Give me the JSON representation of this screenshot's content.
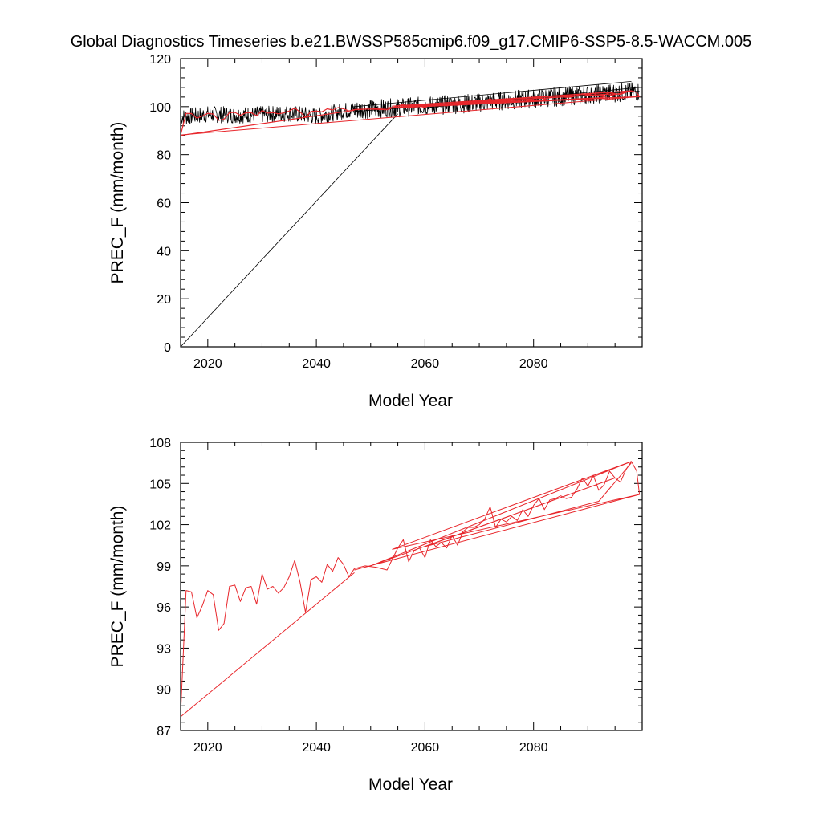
{
  "title": "Global Diagnostics Timeseries b.e21.BWSSP585cmip6.f09_g17.CMIP6-SSP5-8.5-WACCM.005",
  "colors": {
    "monthly": "#000000",
    "annual": "#e8262b",
    "frame": "#000000"
  },
  "chart_data": [
    {
      "type": "line",
      "panel": "top",
      "xlabel": "Model Year",
      "ylabel": "PREC_F (mm/month)",
      "xlim": [
        2015,
        2100
      ],
      "ylim": [
        0,
        120
      ],
      "x_ticks": [
        2020,
        2040,
        2060,
        2080
      ],
      "x_tick_labels": [
        "2020",
        "2040",
        "2060",
        "2080"
      ],
      "y_ticks": [
        0,
        20,
        40,
        60,
        80,
        100,
        120
      ],
      "y_tick_labels": [
        "0",
        "20",
        "40",
        "60",
        "80",
        "100",
        "120"
      ],
      "grid": false,
      "series": [
        {
          "style": "monthly, thin black",
          "color": "#000000",
          "segments_note": "monthly mean noisy series ~94-100 (2015-2047), ~97-110 (2047-2100), with a spurious straight segment from (2015,0) to (2055,97) and trailing wrap lines",
          "points": [
            [
              2015.0,
              0.0
            ],
            [
              2055.0,
              97.0
            ],
            [
              2015.0,
              95.5
            ],
            [
              2020.0,
              96.8
            ],
            [
              2025.0,
              96.5
            ],
            [
              2030.0,
              96.7
            ],
            [
              2035.0,
              97.2
            ],
            [
              2040.0,
              96.0
            ],
            [
              2045.0,
              98.3
            ],
            [
              2050.0,
              99.0
            ],
            [
              2055.0,
              99.5
            ],
            [
              2060.0,
              100.3
            ],
            [
              2065.0,
              100.9
            ],
            [
              2070.0,
              101.7
            ],
            [
              2075.0,
              102.6
            ],
            [
              2080.0,
              103.4
            ],
            [
              2085.0,
              104.2
            ],
            [
              2090.0,
              105.0
            ],
            [
              2095.0,
              105.8
            ],
            [
              2099.5,
              106.3
            ]
          ]
        },
        {
          "style": "annual mean, red",
          "color": "#e8262b",
          "points": [
            [
              2015.0,
              88.2
            ],
            [
              2099.5,
              104.2
            ]
          ]
        }
      ]
    },
    {
      "type": "line",
      "panel": "bottom",
      "xlabel": "Model Year",
      "ylabel": "PREC_F (mm/month)",
      "xlim": [
        2015,
        2100
      ],
      "ylim": [
        87,
        108
      ],
      "x_ticks": [
        2020,
        2040,
        2060,
        2080
      ],
      "x_tick_labels": [
        "2020",
        "2040",
        "2060",
        "2080"
      ],
      "y_ticks": [
        87,
        90,
        93,
        96,
        99,
        102,
        105,
        108
      ],
      "y_tick_labels": [
        "87",
        "90",
        "93",
        "96",
        "99",
        "102",
        "105",
        "108"
      ],
      "grid": false,
      "series": [
        {
          "style": "annual mean, red",
          "color": "#e8262b",
          "points": [
            [
              2015,
              88.2
            ],
            [
              2016,
              97.2
            ],
            [
              2017,
              97.1
            ],
            [
              2018,
              95.2
            ],
            [
              2019,
              96.1
            ],
            [
              2020,
              97.2
            ],
            [
              2021,
              96.9
            ],
            [
              2022,
              94.3
            ],
            [
              2023,
              94.8
            ],
            [
              2024,
              97.5
            ],
            [
              2025,
              97.6
            ],
            [
              2026,
              96.4
            ],
            [
              2027,
              97.4
            ],
            [
              2028,
              97.5
            ],
            [
              2029,
              96.2
            ],
            [
              2030,
              98.4
            ],
            [
              2031,
              97.3
            ],
            [
              2032,
              97.5
            ],
            [
              2033,
              97.0
            ],
            [
              2034,
              97.4
            ],
            [
              2035,
              98.2
            ],
            [
              2036,
              99.4
            ],
            [
              2037,
              97.8
            ],
            [
              2038,
              95.6
            ],
            [
              2039,
              98.0
            ],
            [
              2040,
              98.2
            ],
            [
              2041,
              97.8
            ],
            [
              2042,
              99.1
            ],
            [
              2043,
              98.6
            ],
            [
              2044,
              99.6
            ],
            [
              2045,
              99.1
            ],
            [
              2046,
              98.2
            ],
            [
              2047,
              98.8
            ]
          ]
        },
        {
          "style": "wrap segment, red",
          "color": "#e8262b",
          "points": [
            [
              2015,
              88.0
            ],
            [
              2047,
              98.5
            ]
          ]
        },
        {
          "style": "annual mean (later decades), red",
          "color": "#e8262b",
          "points": [
            [
              2047,
              98.8
            ],
            [
              2049,
              99.0
            ],
            [
              2051,
              98.9
            ],
            [
              2053,
              98.7
            ],
            [
              2055,
              100.3
            ],
            [
              2056,
              100.9
            ],
            [
              2057,
              99.3
            ],
            [
              2058,
              100.1
            ],
            [
              2059,
              100.3
            ],
            [
              2060,
              99.6
            ],
            [
              2061,
              100.9
            ],
            [
              2062,
              100.4
            ],
            [
              2063,
              100.7
            ],
            [
              2064,
              100.3
            ],
            [
              2065,
              101.2
            ],
            [
              2066,
              100.5
            ],
            [
              2067,
              101.5
            ],
            [
              2068,
              101.8
            ],
            [
              2069,
              101.8
            ],
            [
              2070,
              102.0
            ],
            [
              2071,
              102.4
            ],
            [
              2072,
              103.3
            ],
            [
              2073,
              101.8
            ],
            [
              2074,
              102.4
            ],
            [
              2075,
              102.2
            ],
            [
              2076,
              102.6
            ],
            [
              2077,
              102.3
            ],
            [
              2078,
              103.1
            ],
            [
              2079,
              102.6
            ],
            [
              2080,
              103.4
            ],
            [
              2081,
              103.9
            ],
            [
              2082,
              103.1
            ],
            [
              2083,
              103.8
            ],
            [
              2084,
              103.9
            ],
            [
              2085,
              104.1
            ],
            [
              2086,
              103.9
            ],
            [
              2087,
              104.0
            ],
            [
              2088,
              104.6
            ],
            [
              2089,
              105.4
            ],
            [
              2090,
              104.8
            ],
            [
              2091,
              105.6
            ],
            [
              2092,
              104.5
            ],
            [
              2093,
              104.9
            ],
            [
              2094,
              105.9
            ],
            [
              2095,
              105.4
            ],
            [
              2096,
              105.1
            ],
            [
              2097,
              106.0
            ],
            [
              2098,
              106.6
            ],
            [
              2099,
              105.9
            ],
            [
              2099.5,
              104.2
            ]
          ]
        },
        {
          "style": "wrap segments, red",
          "color": "#e8262b",
          "points": [
            [
              2047,
              98.7
            ],
            [
              2099.5,
              104.2
            ],
            [
              2054,
              100.2
            ],
            [
              2098,
              106.6
            ],
            [
              2050,
              99.0
            ],
            [
              2095,
              105.4
            ],
            [
              2060,
              100.4
            ],
            [
              2092,
              103.7
            ],
            [
              2098,
              106.5
            ]
          ]
        }
      ]
    }
  ]
}
